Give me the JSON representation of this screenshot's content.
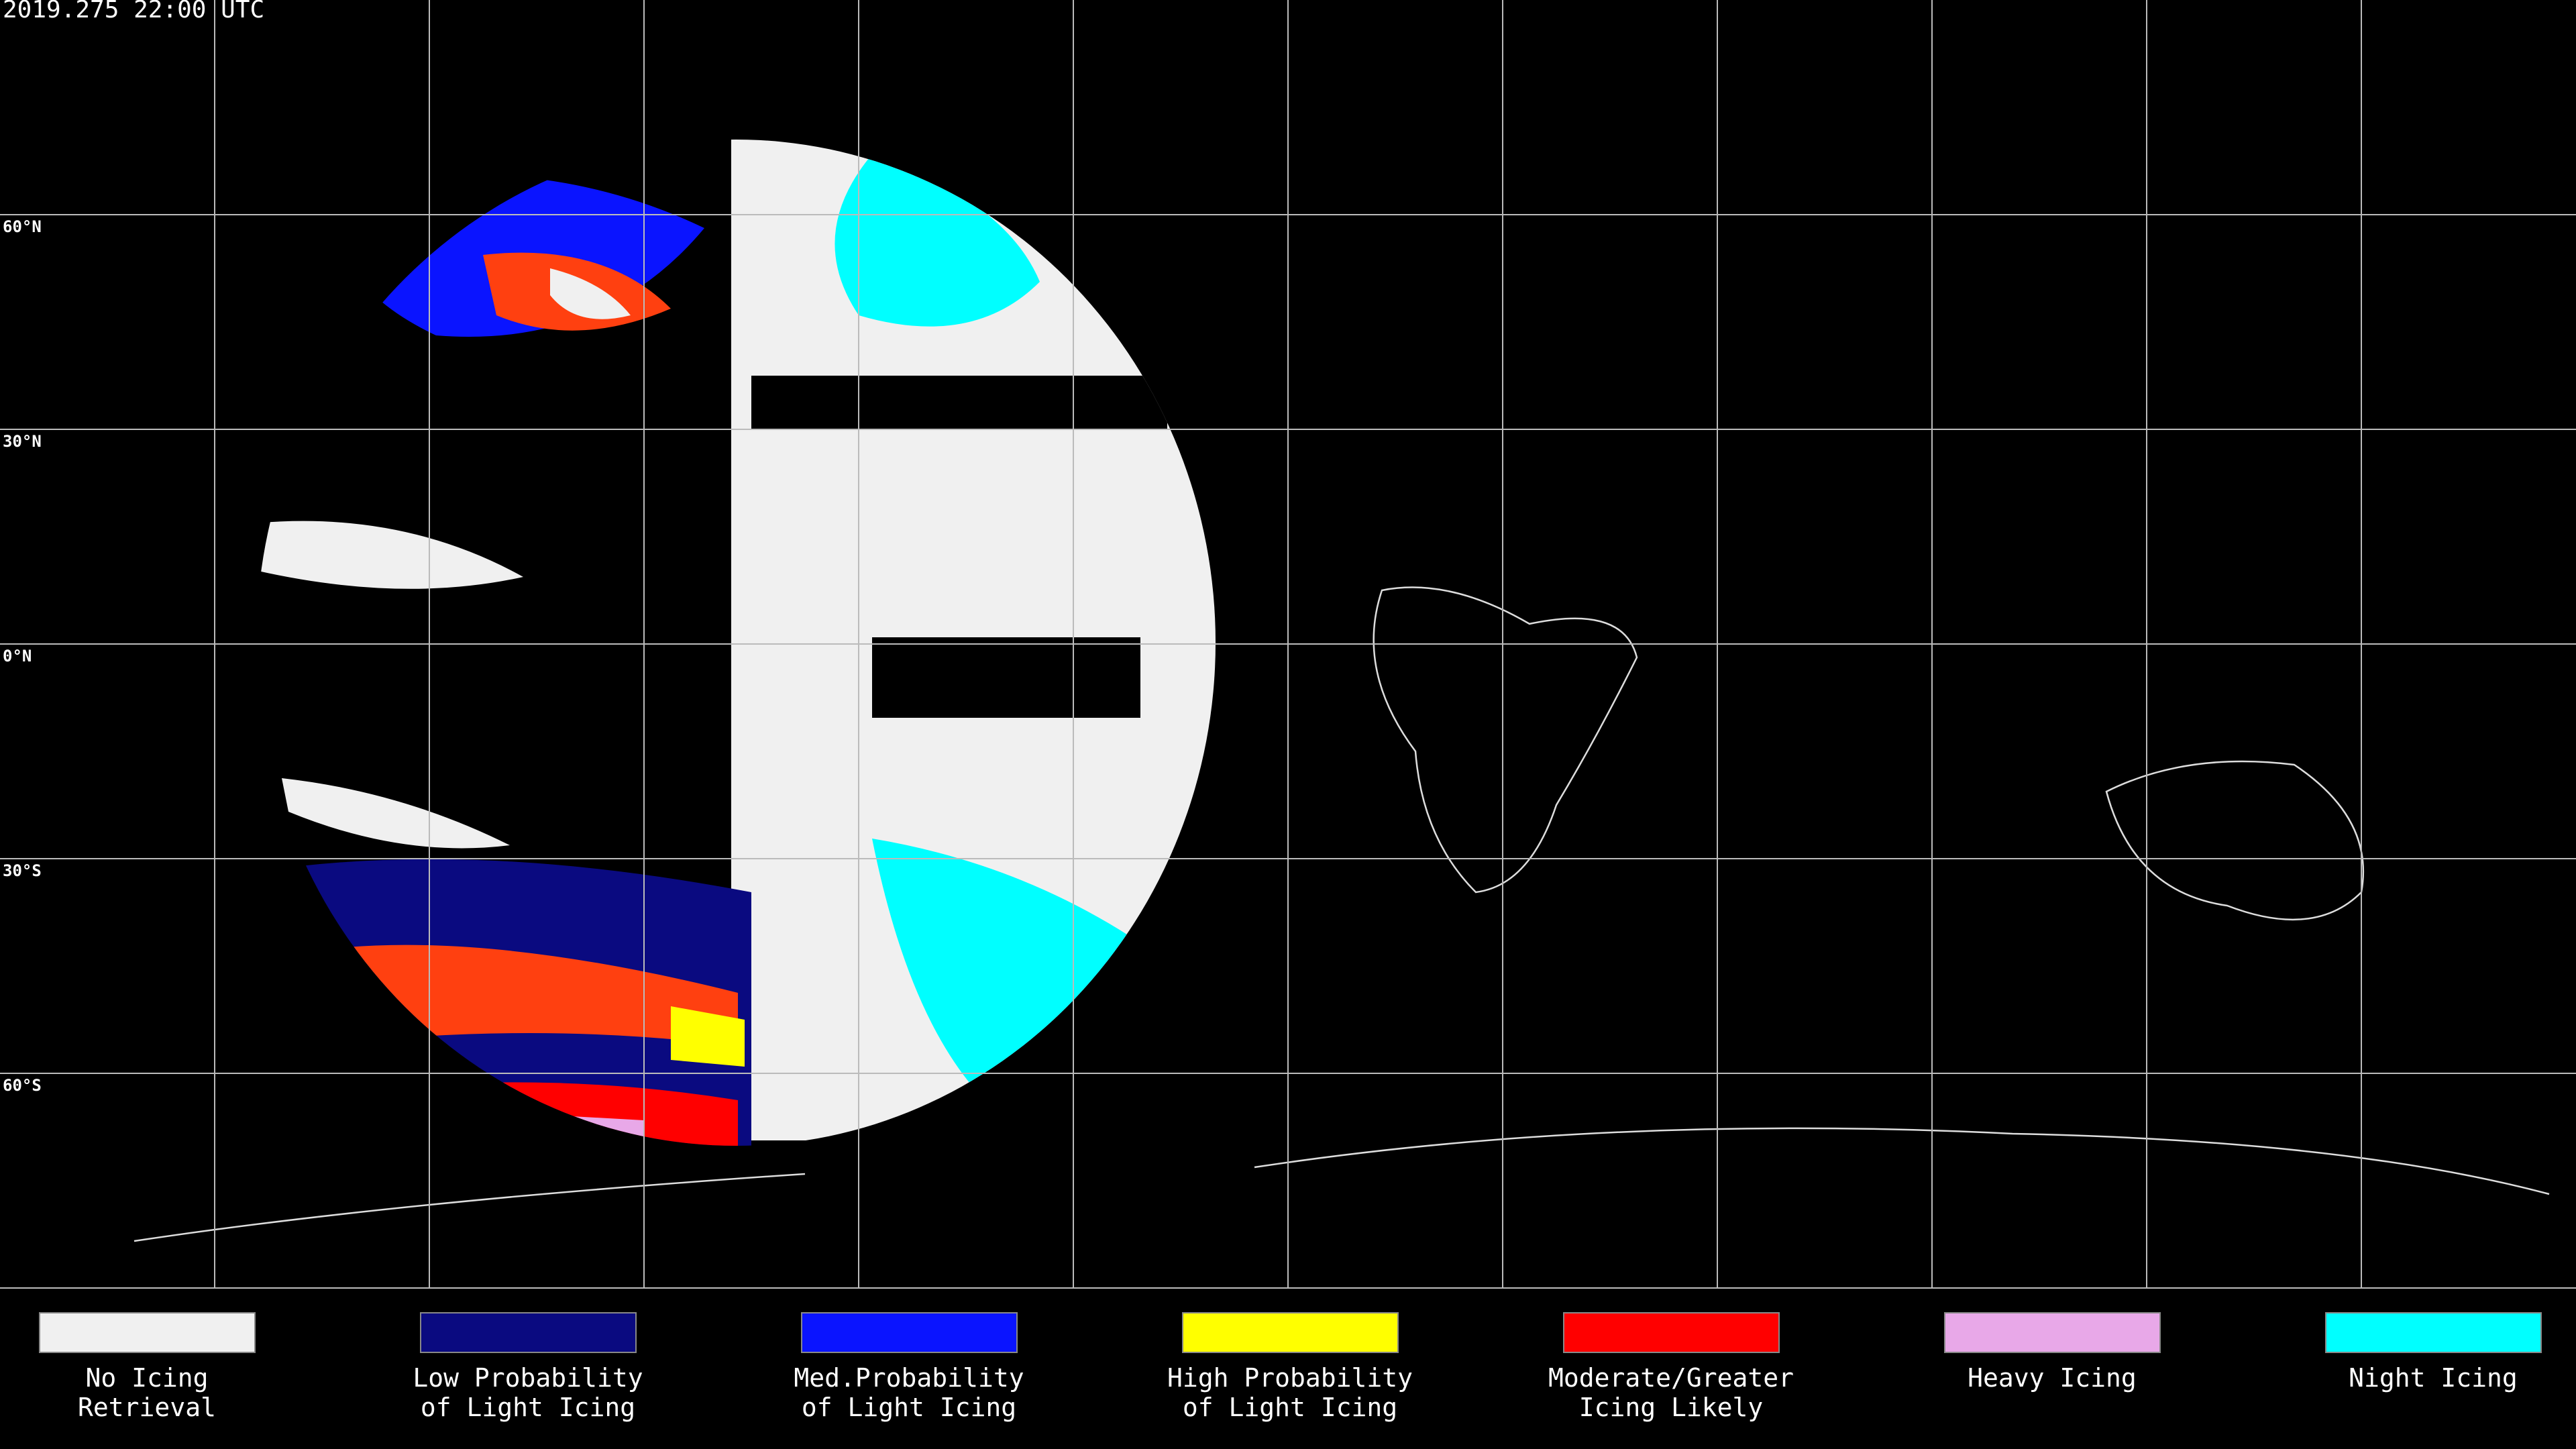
{
  "header": {
    "timestamp": "2019.275 22:00 UTC"
  },
  "map": {
    "lat_labels": [
      "60°N",
      "30°N",
      "0°N",
      "30°S",
      "60°S"
    ]
  },
  "legend": [
    {
      "lines": [
        "No Icing",
        "Retrieval"
      ],
      "color": "#f0f0f0"
    },
    {
      "lines": [
        "Low Probability",
        "of Light Icing"
      ],
      "color": "#0a0a80"
    },
    {
      "lines": [
        "Med.Probability",
        "of Light Icing"
      ],
      "color": "#0a14ff"
    },
    {
      "lines": [
        "High Probability",
        "of Light Icing"
      ],
      "color": "#ffff00"
    },
    {
      "lines": [
        "Moderate/Greater",
        "Icing Likely"
      ],
      "color": "#ff0000"
    },
    {
      "lines": [
        "Heavy Icing"
      ],
      "color": "#e8a8e8"
    },
    {
      "lines": [
        "Night Icing"
      ],
      "color": "#00ffff"
    }
  ]
}
